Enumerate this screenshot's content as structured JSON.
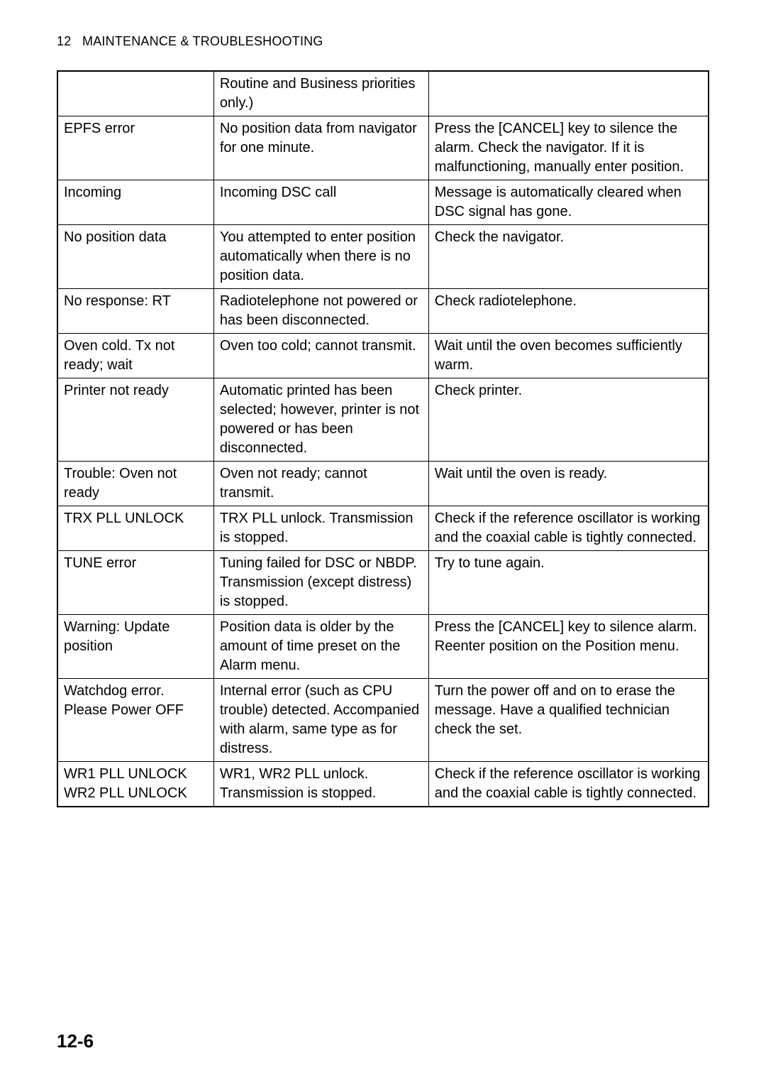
{
  "header": {
    "chapter_number": "12",
    "chapter_title": "MAINTENANCE & TROUBLESHOOTING"
  },
  "table": {
    "rows": [
      {
        "c1": "",
        "c2": "Routine and Business priorities only.)",
        "c3": ""
      },
      {
        "c1": "EPFS error",
        "c2": "No position data from navigator for one minute.",
        "c3": "Press the [CANCEL] key to silence the alarm. Check the navigator. If it is malfunctioning, manually enter position."
      },
      {
        "c1": "Incoming",
        "c2": "Incoming DSC call",
        "c3": "Message is automatically cleared when DSC signal has gone."
      },
      {
        "c1": "No position data",
        "c2": "You attempted to enter position automatically when there is no position data.",
        "c3": "Check the navigator."
      },
      {
        "c1": "No response: RT",
        "c2": "Radiotelephone not powered or has been disconnected.",
        "c3": "Check radiotelephone."
      },
      {
        "c1": "Oven cold. Tx not ready; wait",
        "c2": "Oven too cold; cannot transmit.",
        "c3": "Wait until the oven becomes sufficiently warm."
      },
      {
        "c1": "Printer not ready",
        "c2": "Automatic printed has been selected; however, printer is not powered or has been disconnected.",
        "c3": "Check printer."
      },
      {
        "c1": "Trouble: Oven not ready",
        "c2": "Oven not ready; cannot transmit.",
        "c3": "Wait until the oven is ready."
      },
      {
        "c1": "TRX PLL UNLOCK",
        "c2": "TRX PLL unlock. Transmission is stopped.",
        "c3": "Check if the reference oscillator is working and the coaxial cable is tightly connected."
      },
      {
        "c1": "TUNE error",
        "c2": "Tuning failed for DSC or NBDP. Transmission (except distress) is stopped.",
        "c3": "Try to tune again."
      },
      {
        "c1": "Warning: Update position",
        "c2": "Position data is older by the amount of time preset on the Alarm menu.",
        "c3": "Press the [CANCEL] key to silence alarm. Reenter position on the Position menu."
      },
      {
        "c1": "Watchdog error. Please Power OFF",
        "c2": "Internal error (such as CPU trouble) detected. Accompanied with alarm, same type as for distress.",
        "c3": "Turn the power off and on to erase the message. Have a qualified technician check the set."
      },
      {
        "c1": "WR1 PLL UNLOCK WR2 PLL UNLOCK",
        "c2": "WR1, WR2 PLL unlock. Transmission is stopped.",
        "c3": "Check if the reference oscillator is working and the coaxial cable is tightly connected."
      }
    ]
  },
  "footer": {
    "page_number": "12-6"
  }
}
